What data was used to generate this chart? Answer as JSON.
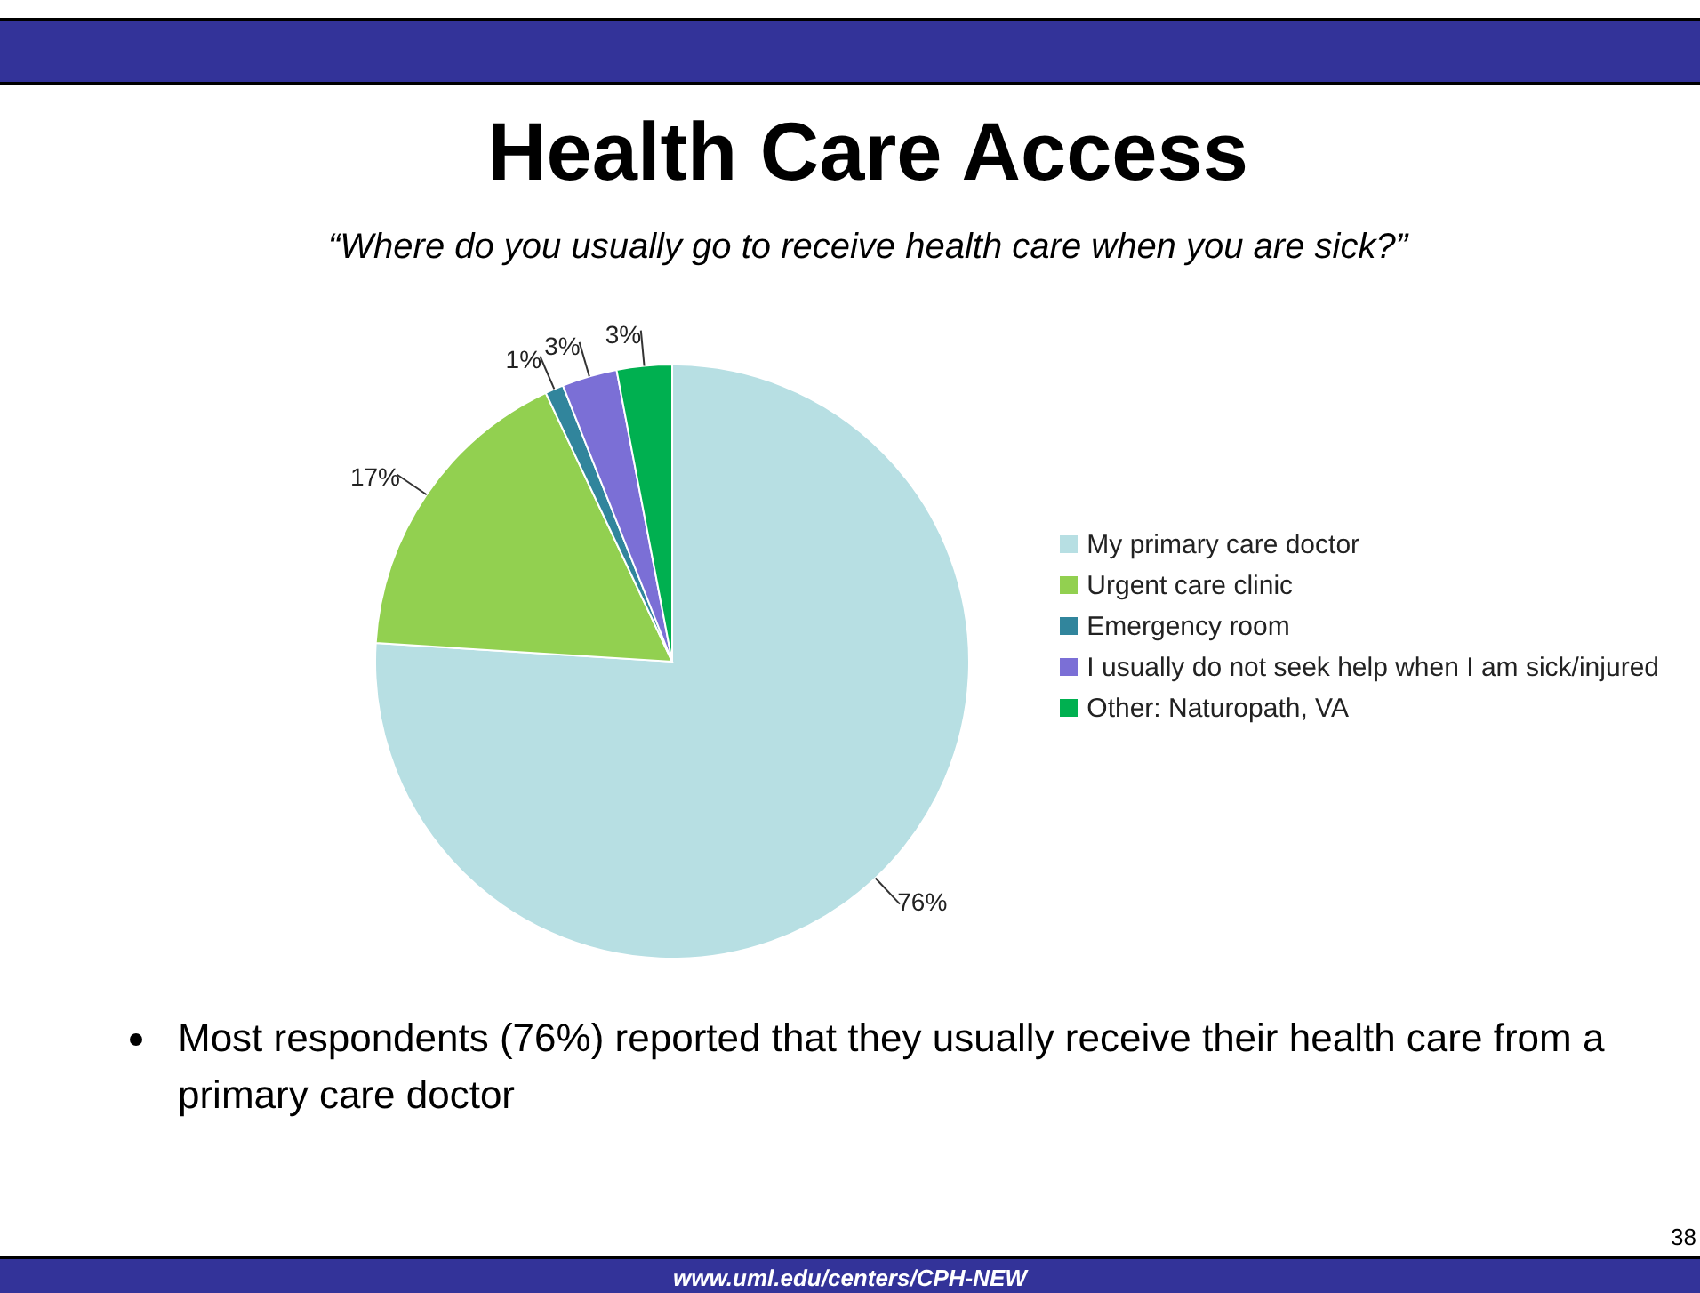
{
  "chart_data": {
    "type": "pie",
    "title": "Health Care Access",
    "subtitle": "“Where do you usually go to receive health care when you are sick?”",
    "categories": [
      "My primary care doctor",
      "Urgent care clinic",
      "Emergency room",
      "I usually do not seek help when I am sick/injured",
      "Other: Naturopath, VA"
    ],
    "values": [
      76,
      17,
      1,
      3,
      3
    ],
    "value_labels": [
      "76%",
      "17%",
      "1%",
      "3%",
      "3%"
    ],
    "colors": [
      "#b7dfe3",
      "#92d050",
      "#31859c",
      "#7b6fd6",
      "#00b050"
    ],
    "legend": "right",
    "annotations": [
      "Most respondents (76%) reported that they usually receive their health care from a primary care doctor",
      "38",
      "www.uml.edu/centers/CPH-NEW"
    ]
  }
}
